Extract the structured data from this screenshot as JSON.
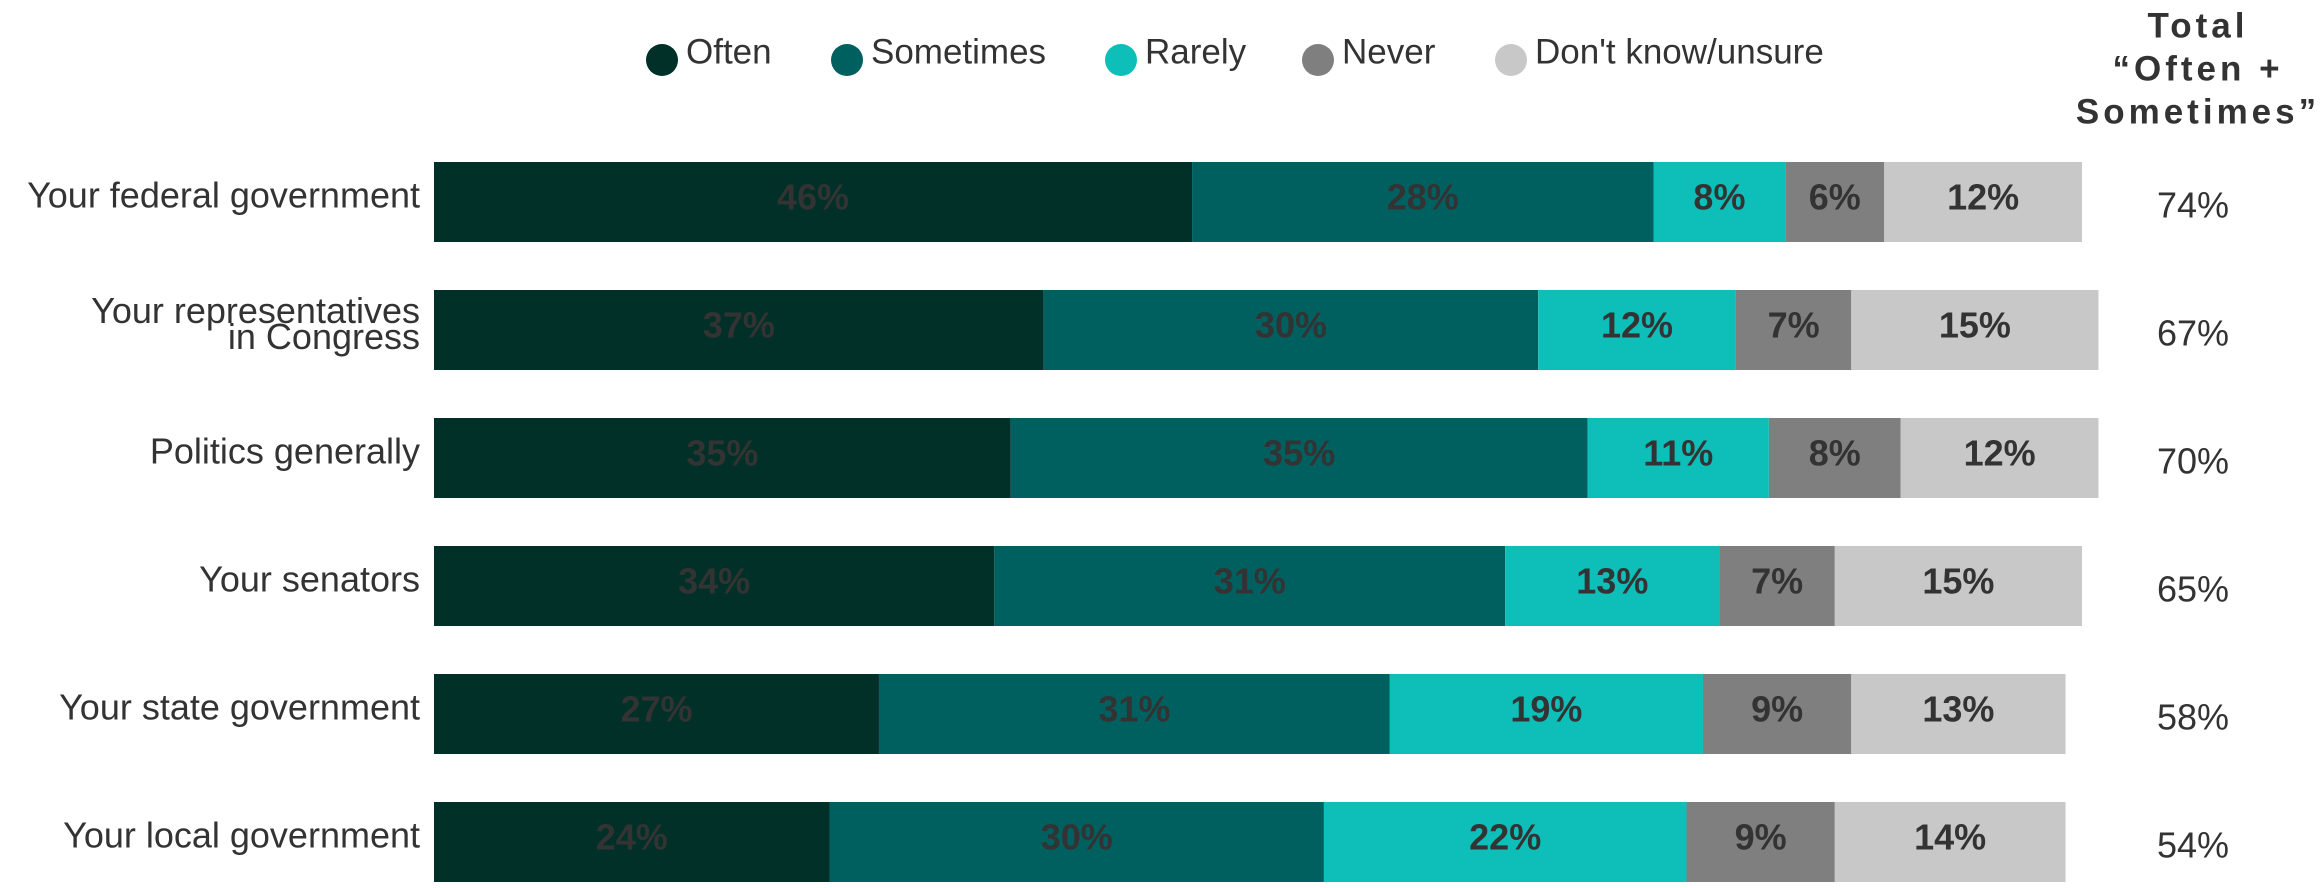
{
  "chart_data": {
    "type": "stacked-bar-horizontal",
    "categories": [
      "Your federal government",
      "Your representatives\nin Congress",
      "Politics generally",
      "Your senators",
      "Your state government",
      "Your local government"
    ],
    "xlim": [
      0,
      100
    ],
    "series": [
      {
        "name": "Often",
        "color": "#003027",
        "values": [
          46,
          37,
          35,
          34,
          27,
          24
        ],
        "value_labels": [
          "46%",
          "37%",
          "35%",
          "34%",
          "27%",
          "24%"
        ]
      },
      {
        "name": "Sometimes",
        "color": "#006060",
        "values": [
          28,
          30,
          35,
          31,
          31,
          30
        ],
        "value_labels": [
          "28%",
          "30%",
          "35%",
          "31%",
          "31%",
          "30%"
        ]
      },
      {
        "name": "Rarely",
        "color": "#0dbfb8",
        "values": [
          8,
          12,
          11,
          13,
          19,
          22
        ],
        "value_labels": [
          "8%",
          "12%",
          "11%",
          "13%",
          "19%",
          "22%"
        ]
      },
      {
        "name": "Never",
        "color": "#7f7f7f",
        "values": [
          6,
          7,
          8,
          7,
          9,
          9
        ],
        "value_labels": [
          "6%",
          "7%",
          "8%",
          "7%",
          "9%",
          "9%"
        ]
      },
      {
        "name": "Don't know/unsure",
        "color": "#c8c8c8",
        "values": [
          12,
          15,
          12,
          15,
          13,
          14
        ],
        "value_labels": [
          "12%",
          "15%",
          "12%",
          "15%",
          "13%",
          "14%"
        ]
      }
    ],
    "totals": {
      "title": [
        "Total",
        "“Often +",
        "Sometimes”"
      ],
      "values": [
        74,
        67,
        70,
        65,
        58,
        54
      ],
      "value_labels": [
        "74%",
        "67%",
        "70%",
        "65%",
        "58%",
        "54%"
      ]
    }
  }
}
